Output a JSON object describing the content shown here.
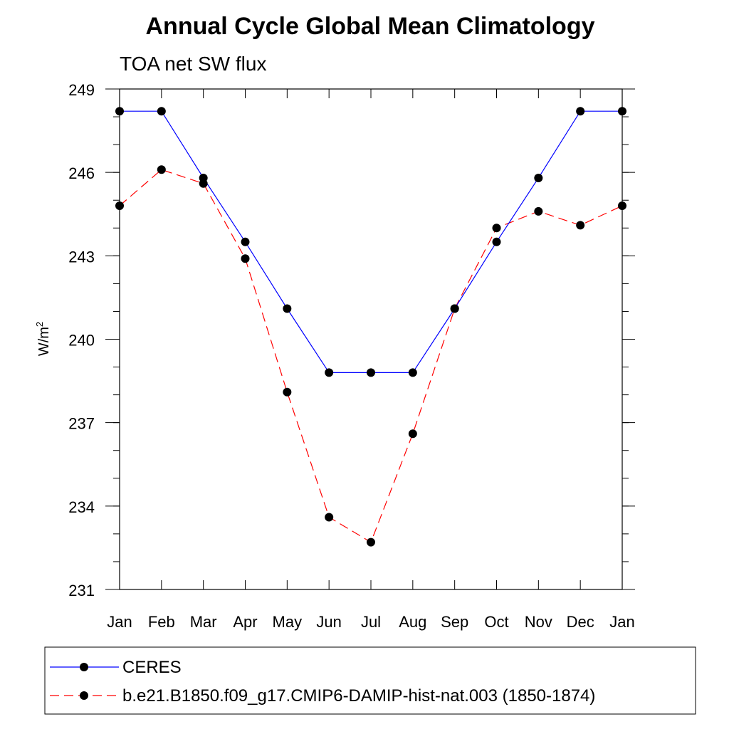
{
  "chart_data": {
    "type": "line",
    "title": "Annual Cycle Global Mean Climatology",
    "subtitle": "TOA net SW flux",
    "xlabel": "",
    "ylabel": "W/m",
    "ylabel_superscript": "2",
    "categories": [
      "Jan",
      "Feb",
      "Mar",
      "Apr",
      "May",
      "Jun",
      "Jul",
      "Aug",
      "Sep",
      "Oct",
      "Nov",
      "Dec",
      "Jan"
    ],
    "ylim": [
      231,
      249
    ],
    "yticks": [
      231,
      234,
      237,
      240,
      243,
      246,
      249
    ],
    "yminor_step": 1,
    "grid": false,
    "legend_position": "bottom",
    "series": [
      {
        "name": "CERES",
        "color": "#0000ff",
        "line_style": "solid",
        "marker": "filled-circle",
        "values": [
          248.2,
          248.2,
          245.8,
          243.5,
          241.1,
          238.8,
          238.8,
          238.8,
          241.1,
          243.5,
          245.8,
          248.2,
          248.2
        ]
      },
      {
        "name": "b.e21.B1850.f09_g17.CMIP6-DAMIP-hist-nat.003 (1850-1874)",
        "color": "#ff0000",
        "line_style": "dashed",
        "marker": "filled-circle",
        "values": [
          244.8,
          246.1,
          245.6,
          242.9,
          238.1,
          233.6,
          232.7,
          236.6,
          241.1,
          244.0,
          244.6,
          244.1,
          244.8
        ]
      }
    ]
  }
}
